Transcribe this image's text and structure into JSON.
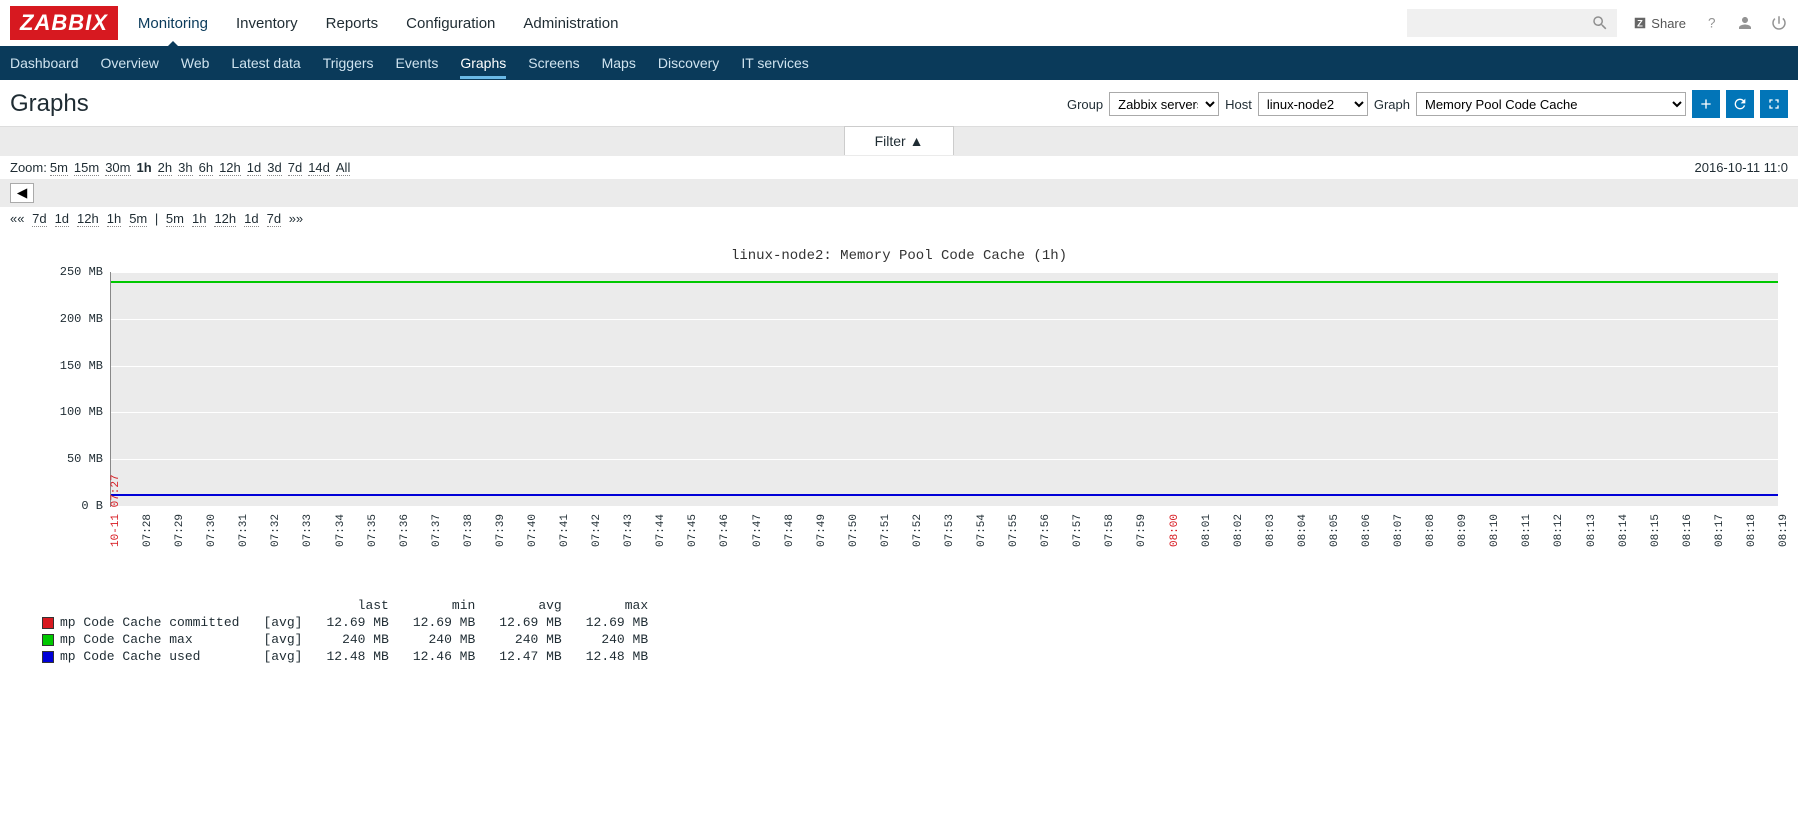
{
  "logo": "ZABBIX",
  "topnav": [
    "Monitoring",
    "Inventory",
    "Reports",
    "Configuration",
    "Administration"
  ],
  "topnav_active": 0,
  "share_label": "Share",
  "subnav": [
    "Dashboard",
    "Overview",
    "Web",
    "Latest data",
    "Triggers",
    "Events",
    "Graphs",
    "Screens",
    "Maps",
    "Discovery",
    "IT services"
  ],
  "subnav_active": 6,
  "page_title": "Graphs",
  "filters": {
    "group_label": "Group",
    "group_value": "Zabbix servers",
    "host_label": "Host",
    "host_value": "linux-node2",
    "graph_label": "Graph",
    "graph_value": "Memory Pool Code Cache"
  },
  "filter_tab": "Filter ▲",
  "zoom_label": "Zoom:",
  "zoom_levels": [
    "5m",
    "15m",
    "30m",
    "1h",
    "2h",
    "3h",
    "6h",
    "12h",
    "1d",
    "3d",
    "7d",
    "14d",
    "All"
  ],
  "zoom_selected": "1h",
  "timestamp_right": "2016-10-11 11:0",
  "nav_back": [
    "7d",
    "1d",
    "12h",
    "1h",
    "5m"
  ],
  "nav_fwd": [
    "5m",
    "1h",
    "12h",
    "1d",
    "7d"
  ],
  "chart": {
    "title": "linux-node2: Memory Pool Code Cache (1h)",
    "ylim_max": 250,
    "ylabels": [
      {
        "v": 250,
        "t": "250 MB"
      },
      {
        "v": 200,
        "t": "200 MB"
      },
      {
        "v": 150,
        "t": "150 MB"
      },
      {
        "v": 100,
        "t": "100 MB"
      },
      {
        "v": 50,
        "t": "50 MB"
      },
      {
        "v": 0,
        "t": "0 B"
      }
    ],
    "xfirst": "10-11 07:27",
    "xlabels": [
      "07:28",
      "07:29",
      "07:30",
      "07:31",
      "07:32",
      "07:33",
      "07:34",
      "07:35",
      "07:36",
      "07:37",
      "07:38",
      "07:39",
      "07:40",
      "07:41",
      "07:42",
      "07:43",
      "07:44",
      "07:45",
      "07:46",
      "07:47",
      "07:48",
      "07:49",
      "07:50",
      "07:51",
      "07:52",
      "07:53",
      "07:54",
      "07:55",
      "07:56",
      "07:57",
      "07:58",
      "07:59",
      "08:00",
      "08:01",
      "08:02",
      "08:03",
      "08:04",
      "08:05",
      "08:06",
      "08:07",
      "08:08",
      "08:09",
      "08:10",
      "08:11",
      "08:12",
      "08:13",
      "08:14",
      "08:15",
      "08:16",
      "08:17",
      "08:18",
      "08:19"
    ],
    "xmark": "08:00",
    "series": [
      {
        "name": "mp Code Cache max",
        "value": 240,
        "color": "#00c800"
      },
      {
        "name": "mp Code Cache committed",
        "value": 12.69,
        "color": "#d71920"
      },
      {
        "name": "mp Code Cache used",
        "value": 12.48,
        "color": "#0000d7"
      }
    ],
    "plot_bg": "#ebebeb",
    "grid_color": "#ffffff"
  },
  "legend": {
    "cols": [
      "last",
      "min",
      "avg",
      "max"
    ],
    "rows": [
      {
        "color": "#d71920",
        "label": "mp Code Cache committed",
        "agg": "[avg]",
        "vals": [
          "12.69 MB",
          "12.69 MB",
          "12.69 MB",
          "12.69 MB"
        ]
      },
      {
        "color": "#00c800",
        "label": "mp Code Cache max",
        "agg": "[avg]",
        "vals": [
          "240 MB",
          "240 MB",
          "240 MB",
          "240 MB"
        ]
      },
      {
        "color": "#0000d7",
        "label": "mp Code Cache used",
        "agg": "[avg]",
        "vals": [
          "12.48 MB",
          "12.46 MB",
          "12.47 MB",
          "12.48 MB"
        ]
      }
    ]
  }
}
